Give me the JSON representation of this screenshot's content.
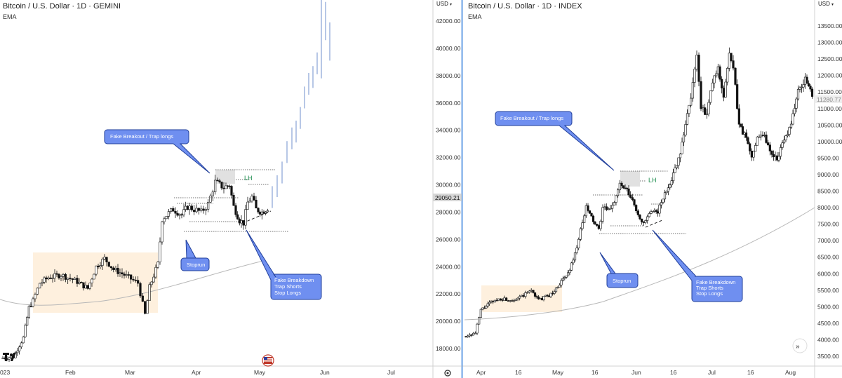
{
  "colors": {
    "candle": "#111111",
    "projection": "#b7c7e6",
    "ema": "#b8b8b8",
    "range_fill": "#fdebd3",
    "callout_fill": "#6f8ff0",
    "callout_border": "#213f9a",
    "lh_text": "#178a4a",
    "divider": "#2f7bdb",
    "last_price_bg": "#d6d6d6"
  },
  "left_chart": {
    "title": "Bitcoin / U.S. Dollar · 1D · GEMINI",
    "subtitle": "EMA",
    "currency_menu": "USD",
    "last_price": "29050.21",
    "ytick_labels": [
      "42000.00",
      "40000.00",
      "38000.00",
      "36000.00",
      "34000.00",
      "32000.00",
      "30000.00",
      "28000.00",
      "26000.00",
      "24000.00",
      "22000.00",
      "20000.00",
      "18000.00"
    ],
    "xtick_labels": [
      "023",
      "Feb",
      "Mar",
      "Apr",
      "May",
      "Jun",
      "Jul"
    ],
    "callouts": {
      "fake_breakout": "Fake Breakout / Trap longs",
      "stoprun": "Stoprun",
      "fake_breakdown": [
        "Fake Breakdown",
        "Trap Shorts",
        "Stop Longs"
      ]
    },
    "lh_label": "LH"
  },
  "right_chart": {
    "title": "Bitcoin / U.S. Dollar · 1D · INDEX",
    "subtitle": "EMA",
    "currency_menu": "USD",
    "last_price": "11280.77",
    "ytick_labels": [
      "13500.00",
      "13000.00",
      "12500.00",
      "12000.00",
      "11500.00",
      "11000.00",
      "10500.00",
      "10000.00",
      "9500.00",
      "9000.00",
      "8500.00",
      "8000.00",
      "7500.00",
      "7000.00",
      "6500.00",
      "6000.00",
      "5500.00",
      "5000.00",
      "4500.00",
      "4000.00",
      "3500.00"
    ],
    "xtick_labels": [
      "Apr",
      "16",
      "May",
      "16",
      "Jun",
      "16",
      "Jul",
      "16",
      "Aug"
    ],
    "callouts": {
      "fake_breakout": "Fake Breakout / Trap longs",
      "stoprun": "Stoprun",
      "fake_breakdown": [
        "Fake Breakdown",
        "Trap Shorts",
        "Stop Longs"
      ]
    },
    "lh_label": "LH"
  },
  "chart_data": [
    {
      "type": "candlestick",
      "title": "Bitcoin / U.S. Dollar · 1D · GEMINI",
      "ylim": [
        17000,
        43000
      ],
      "x_range": [
        "2023-01-01",
        "2023-07-31"
      ],
      "ohlc_sample": [
        {
          "date": "2023-01-10",
          "o": 17400,
          "h": 17600,
          "l": 17200,
          "c": 17500
        },
        {
          "date": "2023-01-14",
          "o": 19000,
          "h": 21000,
          "l": 18900,
          "c": 20800
        },
        {
          "date": "2023-01-20",
          "o": 21000,
          "h": 22800,
          "l": 20600,
          "c": 22500
        },
        {
          "date": "2023-02-01",
          "o": 23000,
          "h": 23800,
          "l": 22800,
          "c": 23600
        },
        {
          "date": "2023-02-16",
          "o": 23800,
          "h": 25200,
          "l": 23200,
          "c": 24800
        },
        {
          "date": "2023-03-10",
          "o": 21600,
          "h": 22000,
          "l": 19600,
          "c": 20300
        },
        {
          "date": "2023-03-18",
          "o": 26500,
          "h": 28200,
          "l": 26400,
          "c": 27500
        },
        {
          "date": "2023-04-11",
          "o": 28300,
          "h": 30500,
          "l": 28200,
          "c": 30100
        },
        {
          "date": "2023-04-20",
          "o": 29000,
          "h": 29200,
          "l": 27600,
          "c": 28000
        },
        {
          "date": "2023-05-01",
          "o": 28700,
          "h": 29300,
          "l": 27300,
          "c": 27500
        },
        {
          "date": "2023-05-10",
          "o": 27500,
          "h": 28000,
          "l": 26800,
          "c": 27200
        }
      ],
      "ema_points": [
        {
          "date": "2023-01-01",
          "v": 20000
        },
        {
          "date": "2023-01-20",
          "v": 20600
        },
        {
          "date": "2023-03-10",
          "v": 22500
        },
        {
          "date": "2023-04-15",
          "v": 24500
        },
        {
          "date": "2023-05-01",
          "v": 25000
        }
      ],
      "projection_top": 42000,
      "annotations": [
        "Fake Breakout / Trap longs",
        "Stoprun",
        "Fake Breakdown",
        "Trap Shorts",
        "Stop Longs",
        "LH"
      ]
    },
    {
      "type": "candlestick",
      "title": "Bitcoin / U.S. Dollar · 1D · INDEX",
      "ylim": [
        3300,
        14100
      ],
      "x_range": [
        "2019-03-28",
        "2019-08-10"
      ],
      "ohlc_sample": [
        {
          "date": "2019-04-02",
          "o": 4150,
          "h": 4250,
          "l": 4100,
          "c": 4200
        },
        {
          "date": "2019-04-05",
          "o": 4900,
          "h": 5200,
          "l": 4850,
          "c": 5100
        },
        {
          "date": "2019-05-01",
          "o": 5300,
          "h": 5500,
          "l": 5200,
          "c": 5450
        },
        {
          "date": "2019-05-13",
          "o": 7200,
          "h": 8100,
          "l": 7000,
          "c": 7900
        },
        {
          "date": "2019-05-25",
          "o": 8000,
          "h": 8400,
          "l": 7900,
          "c": 8250
        },
        {
          "date": "2019-06-05",
          "o": 7800,
          "h": 7850,
          "l": 7450,
          "c": 7650
        },
        {
          "date": "2019-06-26",
          "o": 12500,
          "h": 13800,
          "l": 11000,
          "c": 11300
        },
        {
          "date": "2019-07-10",
          "o": 12600,
          "h": 13200,
          "l": 11600,
          "c": 12100
        },
        {
          "date": "2019-07-17",
          "o": 9700,
          "h": 10500,
          "l": 9100,
          "c": 10000
        },
        {
          "date": "2019-08-06",
          "o": 11800,
          "h": 12300,
          "l": 11300,
          "c": 11400
        }
      ],
      "ema_points": [
        {
          "date": "2019-03-28",
          "v": 4000
        },
        {
          "date": "2019-05-16",
          "v": 4900
        },
        {
          "date": "2019-06-16",
          "v": 6000
        },
        {
          "date": "2019-07-16",
          "v": 7000
        },
        {
          "date": "2019-08-10",
          "v": 8000
        }
      ],
      "annotations": [
        "Fake Breakout / Trap longs",
        "Stoprun",
        "Fake Breakdown",
        "Trap Shorts",
        "Stop Longs",
        "LH"
      ]
    }
  ]
}
